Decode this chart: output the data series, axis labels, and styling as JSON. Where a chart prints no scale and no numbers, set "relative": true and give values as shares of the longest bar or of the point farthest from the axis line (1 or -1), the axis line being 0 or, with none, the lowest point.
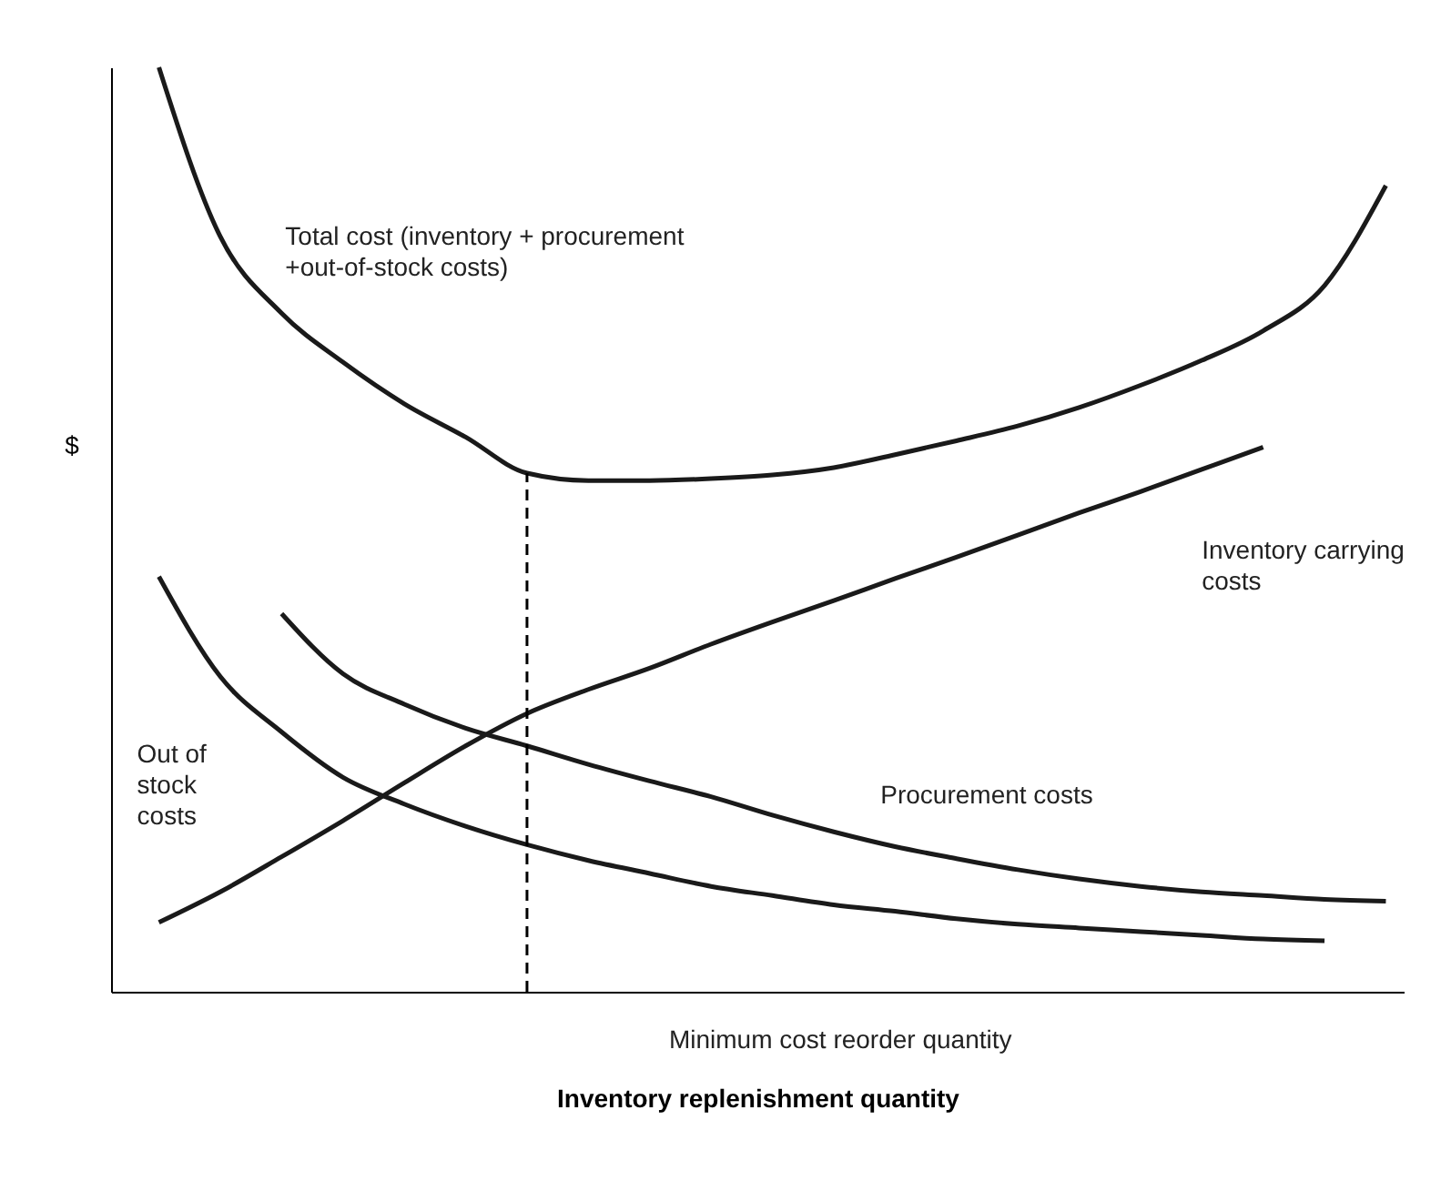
{
  "chart_data": {
    "type": "line",
    "relative": true,
    "xlabel": "Inventory replenishment quantity",
    "ylabel": "$",
    "categories": [
      null,
      null,
      null,
      null,
      null,
      null,
      null,
      null,
      null,
      null,
      null,
      null,
      null,
      null,
      null,
      null,
      null,
      null,
      null,
      null,
      null
    ],
    "series": [
      {
        "name": "Total cost (inventory + procurement\n+out-of-stock costs)",
        "color": "#1a1a1a",
        "values": [
          1.0,
          0.817,
          0.734,
          0.681,
          0.636,
          0.6,
          0.561,
          0.553,
          0.553,
          0.555,
          0.559,
          0.567,
          0.581,
          0.596,
          0.612,
          0.632,
          0.656,
          0.683,
          0.715,
          0.764,
          0.872
        ]
      },
      {
        "name": "Inventory carrying\ncosts",
        "color": "#1a1a1a",
        "values": [
          0.075,
          0.108,
          0.146,
          0.185,
          0.226,
          0.266,
          0.301,
          0.327,
          0.35,
          0.376,
          0.4,
          0.423,
          0.447,
          0.47,
          0.494,
          0.518,
          0.541,
          0.565,
          0.589,
          null,
          null
        ]
      },
      {
        "name": "Procurement costs",
        "color": "#1a1a1a",
        "values": [
          null,
          null,
          0.409,
          0.344,
          0.311,
          0.285,
          0.266,
          0.246,
          0.228,
          0.211,
          0.191,
          0.173,
          0.157,
          0.144,
          0.132,
          0.122,
          0.114,
          0.108,
          0.104,
          0.1,
          0.098
        ]
      },
      {
        "name": "Out of\nstock\ncosts",
        "color": "#1a1a1a",
        "values": [
          0.449,
          0.341,
          0.281,
          0.232,
          0.203,
          0.179,
          0.159,
          0.142,
          0.128,
          0.114,
          0.104,
          0.094,
          0.087,
          0.079,
          0.073,
          0.069,
          0.065,
          0.061,
          0.057,
          0.055,
          null
        ]
      }
    ],
    "annotations": [
      "Minimum cost reorder quantity"
    ],
    "grid": false
  }
}
